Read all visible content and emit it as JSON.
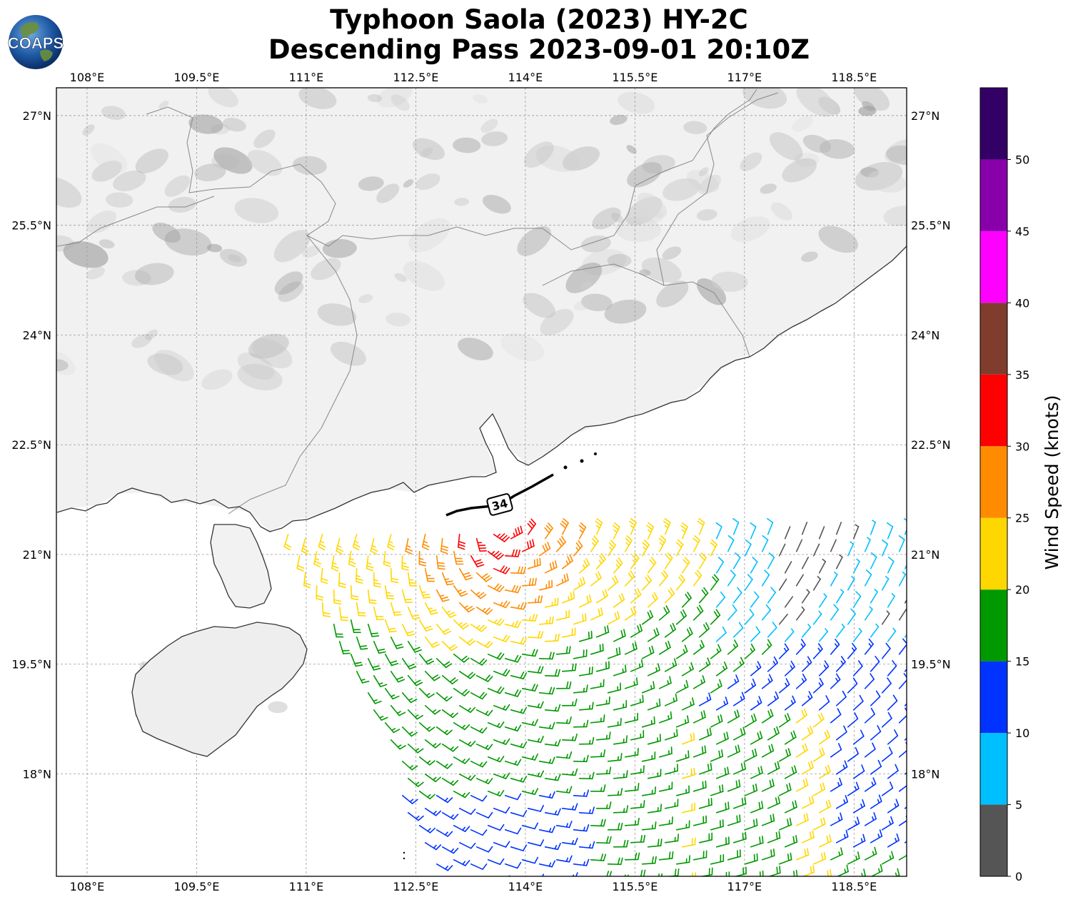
{
  "title": {
    "line1": "Typhoon Saola (2023) HY-2C",
    "line2": "Descending Pass 2023-09-01 20:10Z"
  },
  "logo": {
    "text": "COAPS"
  },
  "axes": {
    "lon_labels": [
      "108°E",
      "109.5°E",
      "111°E",
      "112.5°E",
      "114°E",
      "115.5°E",
      "117°E",
      "118.5°E"
    ],
    "lon_values": [
      108,
      109.5,
      111,
      112.5,
      114,
      115.5,
      117,
      118.5
    ],
    "lat_labels": [
      "27°N",
      "25.5°N",
      "24°N",
      "22.5°N",
      "21°N",
      "19.5°N",
      "18°N"
    ],
    "lat_values": [
      27,
      25.5,
      24,
      22.5,
      21,
      19.5,
      18
    ],
    "lon_range": [
      107.58,
      119.22
    ],
    "lat_range": [
      16.6,
      27.38
    ]
  },
  "storm_marker": {
    "label": "34"
  },
  "colorbar": {
    "label": "Wind Speed (knots)",
    "ticks": [
      "0",
      "5",
      "10",
      "15",
      "20",
      "25",
      "30",
      "35",
      "40",
      "45",
      "50"
    ],
    "bins": [
      {
        "min": 0,
        "max": 5,
        "color": "#555555"
      },
      {
        "min": 5,
        "max": 10,
        "color": "#00bfff"
      },
      {
        "min": 10,
        "max": 15,
        "color": "#0033ff"
      },
      {
        "min": 15,
        "max": 20,
        "color": "#009900"
      },
      {
        "min": 20,
        "max": 25,
        "color": "#ffd700"
      },
      {
        "min": 25,
        "max": 30,
        "color": "#ff8c00"
      },
      {
        "min": 30,
        "max": 35,
        "color": "#ff0000"
      },
      {
        "min": 35,
        "max": 40,
        "color": "#803c2d"
      },
      {
        "min": 40,
        "max": 45,
        "color": "#ff00ff"
      },
      {
        "min": 45,
        "max": 50,
        "color": "#8800aa"
      },
      {
        "min": 50,
        "max": 55,
        "color": "#330066"
      }
    ]
  },
  "wind_field": {
    "center": {
      "lon": 113.6,
      "lat": 21.4
    },
    "swath_boundary_lon_at_lat": [
      [
        21.3,
        110.7
      ],
      [
        17.9,
        112.0
      ],
      [
        16.6,
        112.9
      ]
    ],
    "note_colors": "speed-binned by colorbar"
  }
}
